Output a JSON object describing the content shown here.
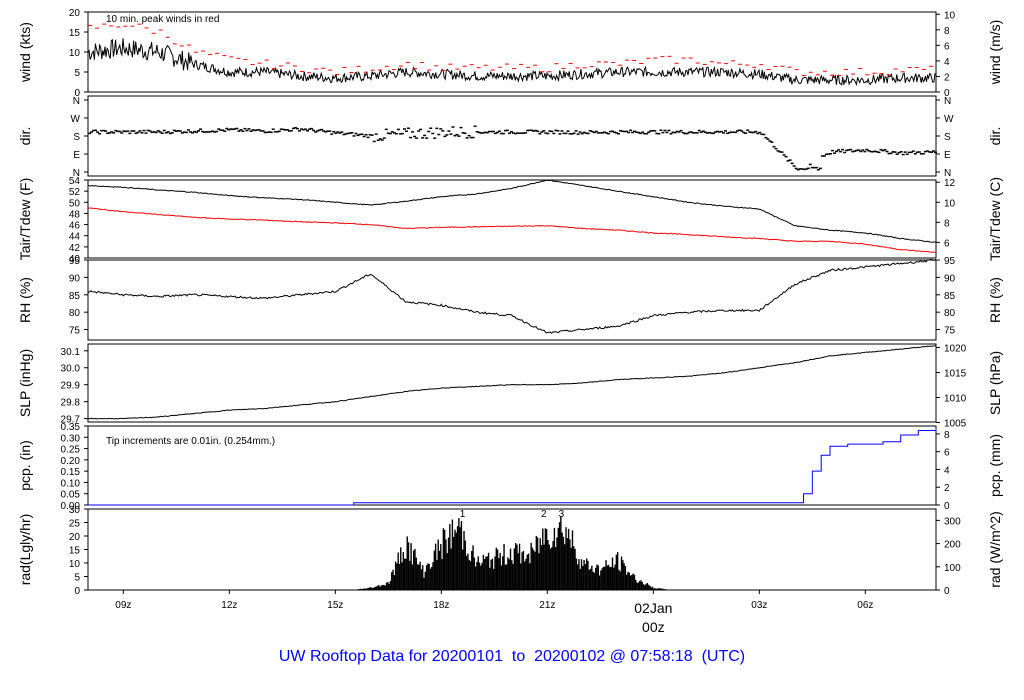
{
  "footer_title": "UW Rooftop Data for 20200101  to  20200102 @ 07:58:18  (UTC)",
  "colors": {
    "primary": "#000000",
    "temp_dew": "#ff0000",
    "peak_winds": "#ff0000",
    "precip": "#0000ff",
    "title": "#0000ff",
    "date_marker": "#ff0000",
    "rad_markers": "#9900cc"
  },
  "chart_data": {
    "type": "line",
    "x_axis": {
      "range_hours_utc": [
        "2020-01-01T08:00Z",
        "2020-01-02T08:00Z"
      ],
      "ticks": [
        "09z",
        "12z",
        "15z",
        "18z",
        "21z",
        "00z",
        "03z",
        "06z"
      ],
      "date_marker": {
        "day": "02Jan",
        "hour": "00z"
      }
    },
    "panels": [
      {
        "id": "wind",
        "ylabel": "wind (kts)",
        "ylabel_right": "wind (m/s)",
        "ylim": [
          0,
          20
        ],
        "ticks": [
          "0",
          "5",
          "10",
          "15",
          "20"
        ],
        "ticks_right": [
          "0",
          "2",
          "4",
          "6",
          "8",
          "10"
        ],
        "annotation": "10 min. peak winds in red",
        "series": [
          {
            "x": [
              "08:00",
              "09:00",
              "10:00",
              "11:00",
              "12:00",
              "13:00",
              "14:00",
              "15:00",
              "16:00",
              "17:00",
              "18:00",
              "19:00",
              "20:00",
              "21:00",
              "22:00",
              "23:00",
              "00:00",
              "01:00",
              "02:00",
              "03:00",
              "04:00",
              "05:00",
              "06:00",
              "07:00",
              "08:00"
            ],
            "y": [
              10,
              11,
              10,
              7,
              5,
              5,
              4,
              3.5,
              4,
              5,
              4.5,
              4,
              4,
              4,
              4.5,
              5,
              5,
              5,
              5,
              4.5,
              3,
              3,
              3,
              3.5,
              3.5
            ]
          },
          {
            "name": "10 min. peak winds in red",
            "x": [
              "08:00",
              "09:00",
              "10:00",
              "11:00",
              "12:00",
              "13:00",
              "14:00",
              "15:00",
              "16:00",
              "17:00",
              "18:00",
              "19:00",
              "20:00",
              "21:00",
              "22:00",
              "23:00",
              "00:00",
              "01:00",
              "02:00",
              "03:00",
              "04:00",
              "05:00",
              "06:00",
              "07:00",
              "08:00"
            ],
            "y": [
              16,
              17,
              15,
              10,
              8,
              7,
              6,
              5,
              6,
              7,
              6,
              6,
              6,
              6,
              7,
              7,
              8,
              8,
              7,
              7,
              5,
              5,
              5,
              5.5,
              5.5
            ]
          }
        ]
      },
      {
        "id": "dir",
        "ylabel": "dir.",
        "ylabel_right": "dir.",
        "type": "scatter",
        "ticks": [
          "N",
          "W",
          "S",
          "E",
          "N"
        ],
        "ylim_degrees": [
          0,
          360
        ],
        "series": [
          {
            "x": [
              "08:00",
              "09:00",
              "10:00",
              "11:00",
              "12:00",
              "13:00",
              "14:00",
              "15:00",
              "16:00",
              "17:00",
              "18:00",
              "19:00",
              "20:00",
              "21:00",
              "22:00",
              "23:00",
              "00:00",
              "01:00",
              "02:00",
              "03:00",
              "04:00",
              "05:00",
              "06:00",
              "07:00",
              "08:00"
            ],
            "y": [
              200,
              200,
              200,
              205,
              210,
              205,
              215,
              195,
              180,
              190,
              200,
              200,
              200,
              200,
              198,
              200,
              200,
              200,
              200,
              200,
              20,
              100,
              110,
              95,
              100
            ]
          }
        ]
      },
      {
        "id": "temp",
        "ylabel": "Tair/Tdew (F)",
        "ylabel_right": "Tair/Tdew (C)",
        "ylim": [
          40,
          54
        ],
        "ticks": [
          "40",
          "42",
          "44",
          "46",
          "48",
          "50",
          "52",
          "54"
        ],
        "ticks_right": [
          "6",
          "8",
          "10",
          "12"
        ],
        "series": [
          {
            "name": "Tair",
            "x": [
              "08:00",
              "09:00",
              "10:00",
              "11:00",
              "12:00",
              "13:00",
              "14:00",
              "15:00",
              "16:00",
              "17:00",
              "18:00",
              "19:00",
              "20:00",
              "21:00",
              "22:00",
              "23:00",
              "00:00",
              "01:00",
              "02:00",
              "03:00",
              "04:00",
              "05:00",
              "06:00",
              "07:00",
              "08:00"
            ],
            "y": [
              53,
              52.7,
              52.2,
              51.8,
              51.2,
              50.8,
              50.5,
              50,
              49.5,
              50.2,
              51,
              51.5,
              52.5,
              54,
              53,
              52,
              51,
              50,
              49.3,
              48.8,
              45.8,
              45,
              44.5,
              43.5,
              42.8
            ]
          },
          {
            "name": "Tdew",
            "x": [
              "08:00",
              "09:00",
              "10:00",
              "11:00",
              "12:00",
              "13:00",
              "14:00",
              "15:00",
              "16:00",
              "17:00",
              "18:00",
              "19:00",
              "20:00",
              "21:00",
              "22:00",
              "23:00",
              "00:00",
              "01:00",
              "02:00",
              "03:00",
              "04:00",
              "05:00",
              "06:00",
              "07:00",
              "08:00"
            ],
            "y": [
              49,
              48.3,
              47.8,
              47.3,
              47,
              46.8,
              46.5,
              46.3,
              46,
              45.3,
              45.5,
              45.6,
              45.7,
              45.8,
              45.3,
              45,
              44.5,
              44.2,
              43.8,
              43.5,
              43,
              43,
              42.5,
              41.5,
              41
            ]
          }
        ]
      },
      {
        "id": "rh",
        "ylabel": "RH (%)",
        "ylabel_right": "RH (%)",
        "ylim": [
          72,
          95
        ],
        "ticks": [
          "75",
          "80",
          "85",
          "90",
          "95"
        ],
        "ticks_right": [
          "75",
          "80",
          "85",
          "90",
          "95"
        ],
        "series": [
          {
            "x": [
              "08:00",
              "09:00",
              "10:00",
              "11:00",
              "12:00",
              "13:00",
              "14:00",
              "15:00",
              "16:00",
              "17:00",
              "18:00",
              "19:00",
              "20:00",
              "21:00",
              "22:00",
              "23:00",
              "00:00",
              "01:00",
              "02:00",
              "03:00",
              "04:00",
              "05:00",
              "06:00",
              "07:00",
              "08:00"
            ],
            "y": [
              86,
              85,
              84.5,
              85,
              84.5,
              84,
              85,
              86,
              91,
              83,
              82,
              80,
              79,
              74,
              75,
              76,
              79,
              80,
              80.5,
              80.5,
              88,
              92,
              93,
              94,
              95
            ]
          }
        ]
      },
      {
        "id": "slp",
        "ylabel": "SLP (inHg)",
        "ylabel_right": "SLP (hPa)",
        "ylim": [
          29.68,
          30.14
        ],
        "ticks": [
          "29.7",
          "29.8",
          "29.9",
          "30.0",
          "30.1"
        ],
        "ticks_right": [
          "1005",
          "1010",
          "1015",
          "1020"
        ],
        "series": [
          {
            "x": [
              "08:00",
              "09:00",
              "10:00",
              "11:00",
              "12:00",
              "13:00",
              "14:00",
              "15:00",
              "16:00",
              "17:00",
              "18:00",
              "19:00",
              "20:00",
              "21:00",
              "22:00",
              "23:00",
              "00:00",
              "01:00",
              "02:00",
              "03:00",
              "04:00",
              "05:00",
              "06:00",
              "07:00",
              "08:00"
            ],
            "y": [
              29.7,
              29.7,
              29.71,
              29.73,
              29.75,
              29.76,
              29.78,
              29.8,
              29.83,
              29.86,
              29.88,
              29.89,
              29.9,
              29.9,
              29.91,
              29.93,
              29.94,
              29.95,
              29.97,
              30.0,
              30.03,
              30.07,
              30.09,
              30.11,
              30.13
            ]
          }
        ]
      },
      {
        "id": "pcp",
        "ylabel": "pcp. (in)",
        "ylabel_right": "pcp. (mm)",
        "ylim": [
          0,
          0.35
        ],
        "ticks": [
          "0.00",
          "0.05",
          "0.10",
          "0.15",
          "0.20",
          "0.25",
          "0.30",
          "0.35"
        ],
        "ticks_right": [
          "0",
          "2",
          "4",
          "6",
          "8"
        ],
        "annotation": "Tip increments are 0.01in. (0.254mm.)",
        "series": [
          {
            "x": [
              "08:00",
              "15:30",
              "15:31",
              "23:59",
              "04:00",
              "04:15",
              "04:30",
              "04:45",
              "05:00",
              "05:30",
              "06:00",
              "06:30",
              "07:00",
              "07:30",
              "07:59"
            ],
            "y": [
              0,
              0,
              0.01,
              0.01,
              0.01,
              0.05,
              0.15,
              0.22,
              0.26,
              0.27,
              0.27,
              0.28,
              0.31,
              0.33,
              0.34
            ]
          }
        ]
      },
      {
        "id": "rad",
        "ylabel": "rad(Lgly/hr)",
        "ylabel_right": "rad (W/m^2)",
        "type": "area",
        "ylim": [
          0,
          30
        ],
        "ticks": [
          "0",
          "5",
          "10",
          "15",
          "20",
          "25",
          "30"
        ],
        "ticks_right": [
          "0",
          "100",
          "200",
          "300"
        ],
        "markers": [
          "1",
          "2",
          "3"
        ],
        "series": [
          {
            "x": [
              "15:30",
              "16:00",
              "16:30",
              "17:00",
              "17:30",
              "18:00",
              "18:30",
              "19:00",
              "19:30",
              "20:00",
              "20:30",
              "21:00",
              "21:30",
              "22:00",
              "22:30",
              "23:00",
              "23:30",
              "00:00",
              "00:30",
              "01:00"
            ],
            "y": [
              0,
              1,
              3,
              21,
              8,
              20,
              28,
              12,
              14,
              17,
              15,
              26,
              28,
              12,
              9,
              13,
              5,
              1,
              0,
              0
            ]
          }
        ]
      }
    ]
  }
}
